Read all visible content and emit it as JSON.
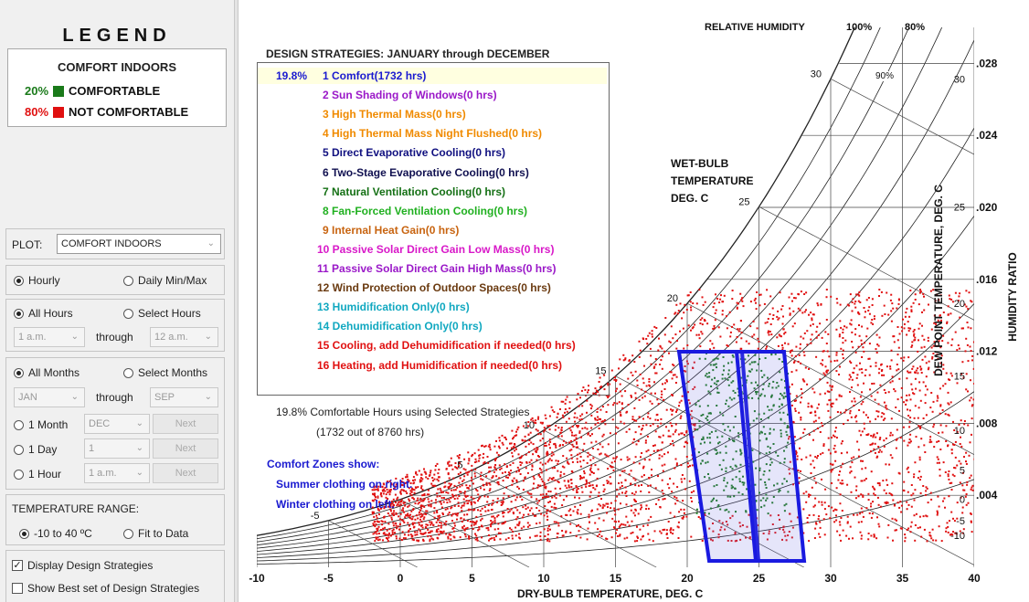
{
  "legend": {
    "title": "LEGEND",
    "header": "COMFORT INDOORS",
    "items": [
      {
        "pct": "20%",
        "label": "COMFORTABLE",
        "color": "#1a7a1a"
      },
      {
        "pct": "80%",
        "label": "NOT COMFORTABLE",
        "color": "#e01010"
      }
    ]
  },
  "controls": {
    "plot_label": "PLOT:",
    "plot_value": "COMFORT INDOORS",
    "hourly": "Hourly",
    "daily": "Daily Min/Max",
    "all_hours": "All Hours",
    "select_hours": "Select Hours",
    "hour_from": "1 a.m.",
    "through": "through",
    "hour_to": "12 a.m.",
    "all_months": "All Months",
    "select_months": "Select Months",
    "month_from": "JAN",
    "month_to": "SEP",
    "one_month": "1 Month",
    "one_month_val": "DEC",
    "one_day": "1 Day",
    "one_day_val": "1",
    "one_hour": "1 Hour",
    "one_hour_val": "1 a.m.",
    "next": "Next",
    "temp_range_label": "TEMPERATURE RANGE:",
    "temp_range_1": "-10 to 40 ºC",
    "temp_range_2": "Fit to Data",
    "display_strategies": "Display Design Strategies",
    "show_best": "Show Best set of Design Strategies"
  },
  "strategies": {
    "title": "DESIGN STRATEGIES:  JANUARY through DECEMBER",
    "first_pct": "19.8%",
    "items": [
      {
        "label": "1 Comfort(1732 hrs)",
        "color": "#1a1ad0"
      },
      {
        "label": "2 Sun Shading of Windows(0 hrs)",
        "color": "#9a18c8"
      },
      {
        "label": "3 High Thermal Mass(0 hrs)",
        "color": "#f08a00"
      },
      {
        "label": "4 High Thermal Mass Night Flushed(0 hrs)",
        "color": "#f08a00"
      },
      {
        "label": "5 Direct Evaporative Cooling(0 hrs)",
        "color": "#101080"
      },
      {
        "label": "6 Two-Stage Evaporative Cooling(0 hrs)",
        "color": "#101050"
      },
      {
        "label": "7 Natural Ventilation Cooling(0 hrs)",
        "color": "#157015"
      },
      {
        "label": "8 Fan-Forced Ventilation Cooling(0 hrs)",
        "color": "#20b020"
      },
      {
        "label": "9 Internal Heat Gain(0 hrs)",
        "color": "#c86410"
      },
      {
        "label": "10 Passive Solar Direct Gain Low Mass(0 hrs)",
        "color": "#d818c8"
      },
      {
        "label": "11 Passive Solar Direct Gain High Mass(0 hrs)",
        "color": "#9a18c8"
      },
      {
        "label": "12 Wind Protection of Outdoor Spaces(0 hrs)",
        "color": "#6a3a10"
      },
      {
        "label": "13 Humidification Only(0 hrs)",
        "color": "#10a8c0"
      },
      {
        "label": "14 Dehumidification Only(0 hrs)",
        "color": "#10a8c0"
      },
      {
        "label": "15 Cooling, add Dehumidification if needed(0 hrs)",
        "color": "#e01010"
      },
      {
        "label": "16 Heating, add Humidification if needed(0 hrs)",
        "color": "#e01010"
      }
    ],
    "summary_line1": "19.8%  Comfortable Hours using Selected Strategies",
    "summary_line2": "(1732 out of 8760 hrs)",
    "zones_line1": "Comfort Zones show:",
    "zones_line2": "Summer clothing on right.",
    "zones_line3": "Winter clothing on left."
  },
  "chart_labels": {
    "relative_humidity": "RELATIVE HUMIDITY",
    "rh100": "100%",
    "rh80": "80%",
    "rh90": "90%",
    "wet_bulb_1": "WET-BULB",
    "wet_bulb_2": "TEMPERATURE",
    "wet_bulb_3": "DEG. C",
    "x_axis": "DRY-BULB TEMPERATURE, DEG. C",
    "dew_axis": "DEW POINT TEMPERATURE, DEG. C",
    "hum_axis": "HUMIDITY RATIO"
  },
  "chart_data": {
    "type": "scatter",
    "x_ticks": [
      "-10",
      "-5",
      "0",
      "5",
      "10",
      "15",
      "20",
      "25",
      "30",
      "35",
      "40"
    ],
    "xlim": [
      -10,
      40
    ],
    "humidity_ratio_ticks": [
      ".028",
      ".024",
      ".020",
      ".016",
      ".012",
      ".008",
      ".004"
    ],
    "ylim": [
      0,
      0.03
    ],
    "dew_point_ticks": [
      "30",
      "25",
      "20",
      "15",
      "10",
      "5",
      "0",
      "-5",
      "-10"
    ],
    "wet_bulb_labels": [
      "30",
      "25",
      "20",
      "15",
      "10",
      "5",
      "-5"
    ],
    "series": [
      {
        "name": "COMFORTABLE",
        "color": "#1a7a1a"
      },
      {
        "name": "NOT COMFORTABLE",
        "color": "#e01010"
      }
    ],
    "comfort_zone_color": "#1a1ae0",
    "grid": true
  }
}
